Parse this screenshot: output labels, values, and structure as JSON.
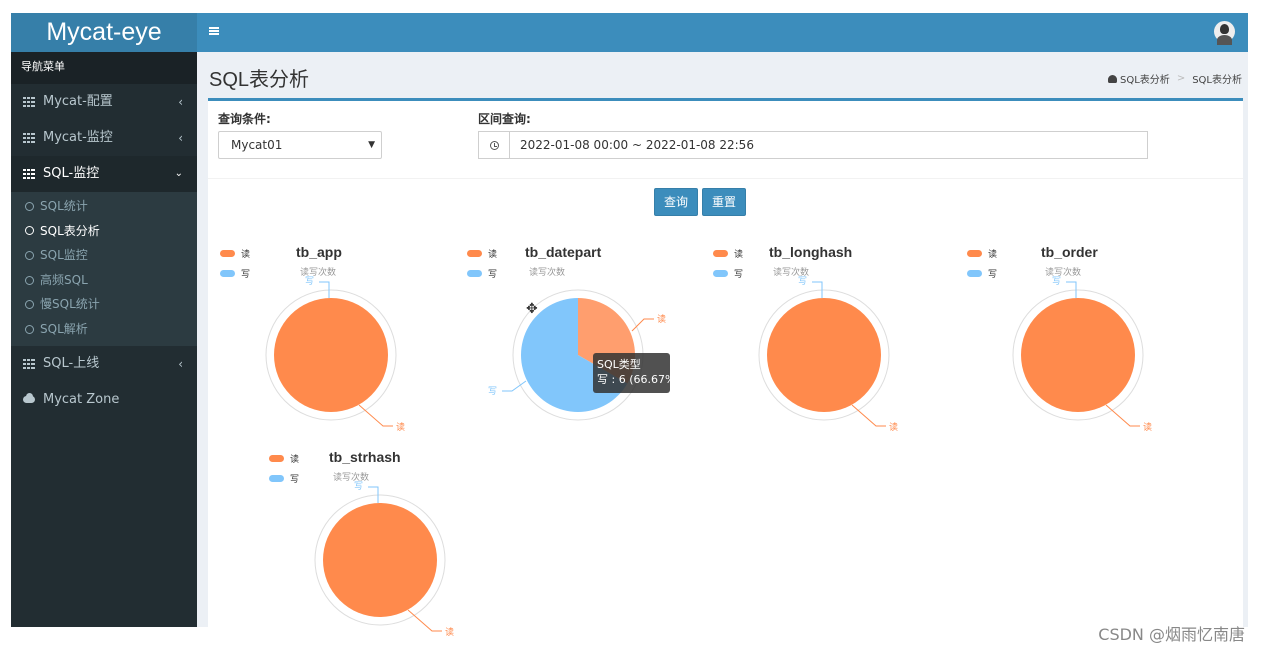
{
  "app": {
    "logo": "Mycat-eye",
    "nav_header": "导航菜单",
    "nav_items": [
      {
        "label": "Mycat-配置"
      },
      {
        "label": "Mycat-监控"
      },
      {
        "label": "SQL-监控"
      },
      {
        "label": "SQL-上线"
      },
      {
        "label": "Mycat Zone"
      }
    ],
    "sub_items": [
      {
        "label": "SQL统计"
      },
      {
        "label": "SQL表分析"
      },
      {
        "label": "SQL监控"
      },
      {
        "label": "高频SQL"
      },
      {
        "label": "慢SQL统计"
      },
      {
        "label": "SQL解析"
      }
    ]
  },
  "page": {
    "title": "SQL表分析",
    "breadcrumb": [
      "SQL表分析",
      "SQL表分析"
    ]
  },
  "filters": {
    "condition_label": "查询条件:",
    "condition_value": "Mycat01",
    "range_label": "区间查询:",
    "range_value": "2022-01-08 00:00 ~ 2022-01-08 22:56",
    "query_button": "查询",
    "reset_button": "重置"
  },
  "colors": {
    "read": "#ff8a4c",
    "write": "#81c6fb",
    "accent": "#3c8dbc"
  },
  "chart_data": [
    {
      "type": "pie",
      "title": "tb_app",
      "subtitle": "读写次数",
      "legend": [
        "读",
        "写"
      ],
      "series": [
        {
          "name": "读",
          "value": 1
        },
        {
          "name": "写",
          "value": 0
        }
      ]
    },
    {
      "type": "pie",
      "title": "tb_datepart",
      "subtitle": "读写次数",
      "legend": [
        "读",
        "写"
      ],
      "series": [
        {
          "name": "读",
          "value": 3
        },
        {
          "name": "写",
          "value": 6
        }
      ],
      "tooltip": {
        "title": "SQL类型",
        "text": "写 : 6 (66.67%)"
      }
    },
    {
      "type": "pie",
      "title": "tb_longhash",
      "subtitle": "读写次数",
      "legend": [
        "读",
        "写"
      ],
      "series": [
        {
          "name": "读",
          "value": 1
        },
        {
          "name": "写",
          "value": 0
        }
      ]
    },
    {
      "type": "pie",
      "title": "tb_order",
      "subtitle": "读写次数",
      "legend": [
        "读",
        "写"
      ],
      "series": [
        {
          "name": "读",
          "value": 1
        },
        {
          "name": "写",
          "value": 0
        }
      ]
    },
    {
      "type": "pie",
      "title": "tb_strhash",
      "subtitle": "读写次数",
      "legend": [
        "读",
        "写"
      ],
      "series": [
        {
          "name": "读",
          "value": 1
        },
        {
          "name": "写",
          "value": 0
        }
      ]
    }
  ],
  "watermark": "CSDN @烟雨忆南唐"
}
